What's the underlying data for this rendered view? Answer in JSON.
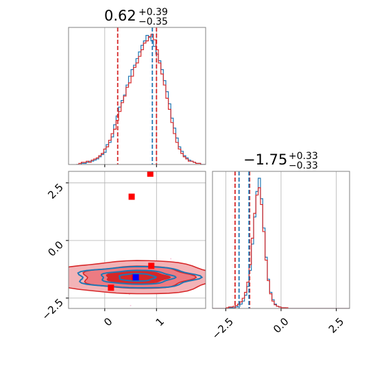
{
  "chart_data": [
    {
      "panel": "1d-histogram-param-1",
      "type": "histogram",
      "title_main": "0.62",
      "title_plus": "+0.39",
      "title_minus": "−0.35",
      "xlim": [
        -0.7,
        1.95
      ],
      "grid": true,
      "quantile_lines_red": [
        0.25,
        1.0
      ],
      "quantile_line_blue": 0.92,
      "series": [
        {
          "color": "#1f77b4",
          "counts": [
            0,
            0,
            1,
            1,
            2,
            3,
            3,
            4,
            5,
            7,
            9,
            11,
            18,
            20,
            25,
            36,
            44,
            52,
            58,
            63,
            72,
            80,
            86,
            90,
            96,
            102,
            108,
            112,
            117,
            115,
            112,
            107,
            100,
            94,
            86,
            76,
            66,
            55,
            42,
            33,
            24,
            16,
            12,
            8,
            6,
            4,
            3,
            2,
            1,
            1,
            0,
            0
          ]
        },
        {
          "color": "#d62728",
          "counts": [
            0,
            1,
            2,
            2,
            3,
            2,
            4,
            5,
            6,
            8,
            10,
            14,
            16,
            22,
            28,
            32,
            40,
            48,
            56,
            62,
            70,
            74,
            80,
            88,
            92,
            98,
            104,
            110,
            112,
            116,
            118,
            113,
            104,
            92,
            82,
            72,
            60,
            50,
            38,
            28,
            20,
            14,
            10,
            7,
            5,
            3,
            3,
            2,
            1,
            1,
            0,
            0
          ]
        }
      ]
    },
    {
      "panel": "1d-histogram-param-2",
      "type": "histogram",
      "title_main": "−1.75",
      "title_plus": "+0.33",
      "title_minus": "−0.33",
      "xlim": [
        -3.1,
        3.1
      ],
      "xticks": [
        "−2.5",
        "0.0",
        "2.5"
      ],
      "xtick_values": [
        -2.5,
        0.0,
        2.5
      ],
      "grid": true,
      "quantile_lines_red": [
        -2.08,
        -1.42
      ],
      "quantile_lines_blue": [
        -1.9,
        -1.45
      ],
      "series": [
        {
          "color": "#1f77b4",
          "counts": [
            0,
            0,
            0,
            0,
            0,
            0,
            0,
            1,
            1,
            1,
            2,
            3,
            6,
            10,
            18,
            30,
            52,
            88,
            125,
            160,
            178,
            150,
            110,
            70,
            40,
            22,
            12,
            6,
            3,
            2,
            1,
            1,
            0,
            0,
            0,
            0,
            0,
            0,
            0,
            0,
            0,
            0,
            0,
            0,
            0,
            0,
            0,
            0,
            0,
            0,
            0,
            0,
            0,
            0,
            0,
            0,
            0,
            0,
            0,
            0
          ]
        },
        {
          "color": "#d62728",
          "counts": [
            0,
            0,
            0,
            0,
            0,
            0,
            1,
            2,
            2,
            3,
            4,
            6,
            9,
            14,
            22,
            36,
            60,
            96,
            130,
            155,
            165,
            142,
            105,
            66,
            38,
            20,
            10,
            5,
            3,
            2,
            1,
            1,
            1,
            0,
            0,
            0,
            0,
            0,
            0,
            0,
            0,
            0,
            0,
            0,
            0,
            0,
            0,
            0,
            0,
            0,
            0,
            0,
            0,
            0,
            0,
            0,
            0,
            0,
            0,
            0
          ]
        }
      ]
    },
    {
      "panel": "2d-contour",
      "type": "contour",
      "xlim": [
        -0.7,
        1.95
      ],
      "ylim": [
        -2.95,
        3.0
      ],
      "xticks": [
        "0",
        "1"
      ],
      "xtick_values": [
        0,
        1
      ],
      "yticks": [
        "−2.5",
        "0.0",
        "2.5"
      ],
      "ytick_values": [
        -2.5,
        0.0,
        2.5
      ],
      "grid": true,
      "red_points": [
        {
          "x": 0.88,
          "y": 2.9
        },
        {
          "x": 0.52,
          "y": 1.9
        },
        {
          "x": 0.9,
          "y": -1.1
        },
        {
          "x": 0.12,
          "y": -2.05
        },
        {
          "x": 0.58,
          "y": -1.6
        }
      ],
      "blue_point": {
        "x": 0.6,
        "y": -1.6
      }
    }
  ]
}
